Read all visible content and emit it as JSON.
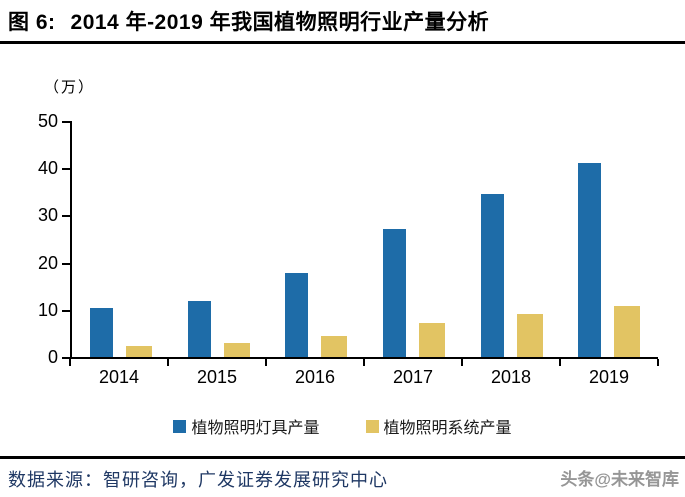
{
  "header": {
    "figure_label": "图 6:",
    "title": "2014 年-2019 年我国植物照明行业产量分析"
  },
  "chart": {
    "unit_label": "（万）"
  },
  "chart_data": {
    "type": "bar",
    "title": "2014 年-2019 年我国植物照明行业产量分析",
    "unit": "万",
    "categories": [
      "2014",
      "2015",
      "2016",
      "2017",
      "2018",
      "2019"
    ],
    "series": [
      {
        "name": "植物照明灯具产量",
        "color": "#1E6CA8",
        "values": [
          10.3,
          11.8,
          17.8,
          27.2,
          34.5,
          41.0
        ]
      },
      {
        "name": "植物照明系统产量",
        "color": "#E2C463",
        "values": [
          2.3,
          3.0,
          4.5,
          7.2,
          9.2,
          10.8
        ]
      }
    ],
    "ylim": [
      0,
      50
    ],
    "yticks": [
      0,
      10,
      20,
      30,
      40,
      50
    ],
    "grid": false,
    "legend_position": "bottom",
    "axis_color": "#000000"
  },
  "footer": {
    "source": "数据来源：智研咨询，广发证券发展研究中心",
    "watermark": "头条@未来智库"
  }
}
